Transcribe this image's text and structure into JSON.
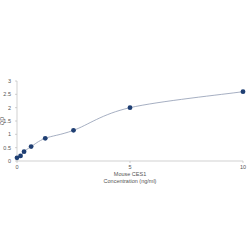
{
  "chart_data": {
    "type": "line",
    "x_label": "Mouse CES1\nConcentration (ng/ml)",
    "y_label": "OD",
    "x": [
      0,
      0.156,
      0.3125,
      0.625,
      1.25,
      2.5,
      5,
      10
    ],
    "series": [
      {
        "name": "Mouse CES1",
        "color": "#1f3f73",
        "values": [
          0.12,
          0.19,
          0.35,
          0.54,
          0.85,
          1.15,
          2.0,
          2.6
        ],
        "marker": "circle",
        "line_style": "solid"
      }
    ],
    "xlim": [
      0,
      10
    ],
    "xticks": [
      0,
      5,
      10
    ],
    "ylim": [
      0,
      3
    ],
    "yticks": [
      0,
      0.5,
      1,
      1.5,
      2,
      2.5,
      3
    ],
    "grid": false
  }
}
